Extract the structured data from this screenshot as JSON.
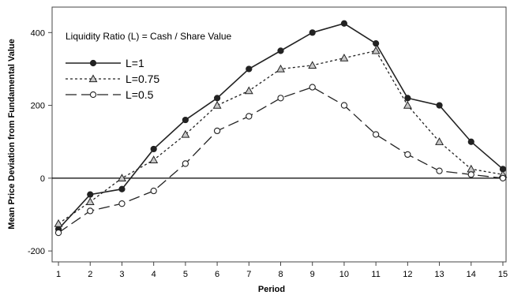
{
  "chart_data": {
    "type": "line",
    "annotation": "Liquidity Ratio (L) = Cash / Share Value",
    "xlabel": "Period",
    "ylabel": "Mean Price Deviation from Fundamental Value",
    "x": [
      1,
      2,
      3,
      4,
      5,
      6,
      7,
      8,
      9,
      10,
      11,
      12,
      13,
      14,
      15
    ],
    "xlim": [
      0.8,
      15.1
    ],
    "ylim": [
      -230,
      470
    ],
    "yticks": [
      -200,
      0,
      200,
      400
    ],
    "reference_line_y": 0,
    "legend_position": "top-left",
    "series": [
      {
        "name": "L=1",
        "marker": "filled-circle",
        "line_style": "solid",
        "values": [
          -140,
          -45,
          -30,
          80,
          160,
          220,
          300,
          350,
          400,
          425,
          370,
          220,
          200,
          100,
          25
        ]
      },
      {
        "name": "L=0.75",
        "marker": "open-triangle",
        "line_style": "dotted",
        "values": [
          -125,
          -65,
          0,
          50,
          120,
          200,
          240,
          300,
          310,
          330,
          350,
          200,
          100,
          25,
          10
        ]
      },
      {
        "name": "L=0.5",
        "marker": "open-circle",
        "line_style": "long-dash",
        "values": [
          -150,
          -90,
          -70,
          -35,
          40,
          130,
          170,
          220,
          250,
          200,
          120,
          65,
          20,
          10,
          0
        ]
      }
    ],
    "colors": {
      "line": "#222222",
      "frame": "#444444",
      "reference": "#000000"
    }
  }
}
